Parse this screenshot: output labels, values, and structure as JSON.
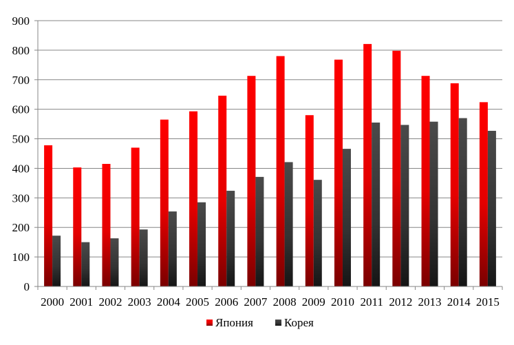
{
  "chart_data": {
    "type": "bar",
    "title": "",
    "xlabel": "",
    "ylabel": "",
    "categories": [
      "2000",
      "2001",
      "2002",
      "2003",
      "2004",
      "2005",
      "2006",
      "2007",
      "2008",
      "2009",
      "2010",
      "2011",
      "2012",
      "2013",
      "2014",
      "2015"
    ],
    "series": [
      {
        "name": "Япония",
        "color": "#e60000",
        "values": [
          478,
          403,
          415,
          470,
          565,
          593,
          646,
          713,
          780,
          580,
          768,
          821,
          798,
          713,
          688,
          624
        ]
      },
      {
        "name": "Корея",
        "color": "#404040",
        "values": [
          172,
          150,
          163,
          193,
          254,
          285,
          324,
          371,
          421,
          361,
          466,
          555,
          547,
          558,
          570,
          527
        ]
      }
    ],
    "ylim": [
      0,
      900
    ],
    "yticks": [
      0,
      100,
      200,
      300,
      400,
      500,
      600,
      700,
      800,
      900
    ],
    "grid": true,
    "legend_position": "bottom-center"
  }
}
